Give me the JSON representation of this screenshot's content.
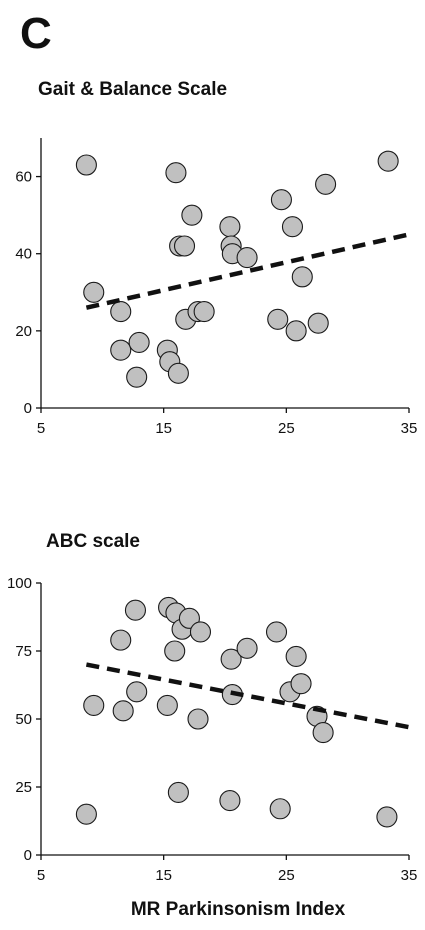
{
  "panel_label": "C",
  "chart_data": [
    {
      "type": "scatter",
      "title": "Gait & Balance Scale",
      "xlabel": "",
      "ylabel": "",
      "xlim": [
        5,
        35
      ],
      "ylim": [
        0,
        70
      ],
      "x_ticks": [
        5,
        15,
        25,
        35
      ],
      "y_ticks": [
        0,
        20,
        40,
        60
      ],
      "grid": false,
      "legend": "none",
      "point_color": "#c0c0c0",
      "series": [
        {
          "points": [
            {
              "x": 8.7,
              "y": 63
            },
            {
              "x": 9.3,
              "y": 30
            },
            {
              "x": 11.5,
              "y": 25
            },
            {
              "x": 11.5,
              "y": 15
            },
            {
              "x": 12.8,
              "y": 8
            },
            {
              "x": 13.0,
              "y": 17
            },
            {
              "x": 15.3,
              "y": 15
            },
            {
              "x": 15.5,
              "y": 12
            },
            {
              "x": 16.0,
              "y": 61
            },
            {
              "x": 16.2,
              "y": 9
            },
            {
              "x": 16.3,
              "y": 42
            },
            {
              "x": 16.7,
              "y": 42
            },
            {
              "x": 16.8,
              "y": 23
            },
            {
              "x": 17.3,
              "y": 50
            },
            {
              "x": 17.8,
              "y": 25
            },
            {
              "x": 18.3,
              "y": 25
            },
            {
              "x": 20.4,
              "y": 47
            },
            {
              "x": 20.5,
              "y": 42
            },
            {
              "x": 20.6,
              "y": 40
            },
            {
              "x": 21.8,
              "y": 39
            },
            {
              "x": 24.3,
              "y": 23
            },
            {
              "x": 24.6,
              "y": 54
            },
            {
              "x": 25.5,
              "y": 47
            },
            {
              "x": 25.8,
              "y": 20
            },
            {
              "x": 26.3,
              "y": 34
            },
            {
              "x": 27.6,
              "y": 22
            },
            {
              "x": 28.2,
              "y": 58
            },
            {
              "x": 33.3,
              "y": 64
            }
          ]
        }
      ],
      "trendline": {
        "x": [
          8.7,
          35
        ],
        "y": [
          26,
          45
        ]
      }
    },
    {
      "type": "scatter",
      "title": "ABC scale",
      "xlabel": "MR Parkinsonism Index",
      "ylabel": "",
      "xlim": [
        5,
        35
      ],
      "ylim": [
        0,
        100
      ],
      "x_ticks": [
        5,
        15,
        25,
        35
      ],
      "y_ticks": [
        0,
        25,
        50,
        75,
        100
      ],
      "grid": false,
      "legend": "none",
      "point_color": "#c0c0c0",
      "series": [
        {
          "points": [
            {
              "x": 8.7,
              "y": 15
            },
            {
              "x": 9.3,
              "y": 55
            },
            {
              "x": 11.5,
              "y": 79
            },
            {
              "x": 11.7,
              "y": 53
            },
            {
              "x": 12.7,
              "y": 90
            },
            {
              "x": 12.8,
              "y": 60
            },
            {
              "x": 15.3,
              "y": 55
            },
            {
              "x": 15.4,
              "y": 91
            },
            {
              "x": 16.0,
              "y": 89
            },
            {
              "x": 15.9,
              "y": 75
            },
            {
              "x": 16.2,
              "y": 23
            },
            {
              "x": 16.5,
              "y": 83
            },
            {
              "x": 17.1,
              "y": 87
            },
            {
              "x": 17.8,
              "y": 50
            },
            {
              "x": 18.0,
              "y": 82
            },
            {
              "x": 20.4,
              "y": 20
            },
            {
              "x": 20.5,
              "y": 72
            },
            {
              "x": 20.6,
              "y": 59
            },
            {
              "x": 21.8,
              "y": 76
            },
            {
              "x": 24.2,
              "y": 82
            },
            {
              "x": 24.5,
              "y": 17
            },
            {
              "x": 25.3,
              "y": 60
            },
            {
              "x": 25.8,
              "y": 73
            },
            {
              "x": 26.2,
              "y": 63
            },
            {
              "x": 27.5,
              "y": 51
            },
            {
              "x": 28.0,
              "y": 45
            },
            {
              "x": 33.2,
              "y": 14
            }
          ]
        }
      ],
      "trendline": {
        "x": [
          8.7,
          35
        ],
        "y": [
          70,
          47
        ]
      }
    }
  ]
}
